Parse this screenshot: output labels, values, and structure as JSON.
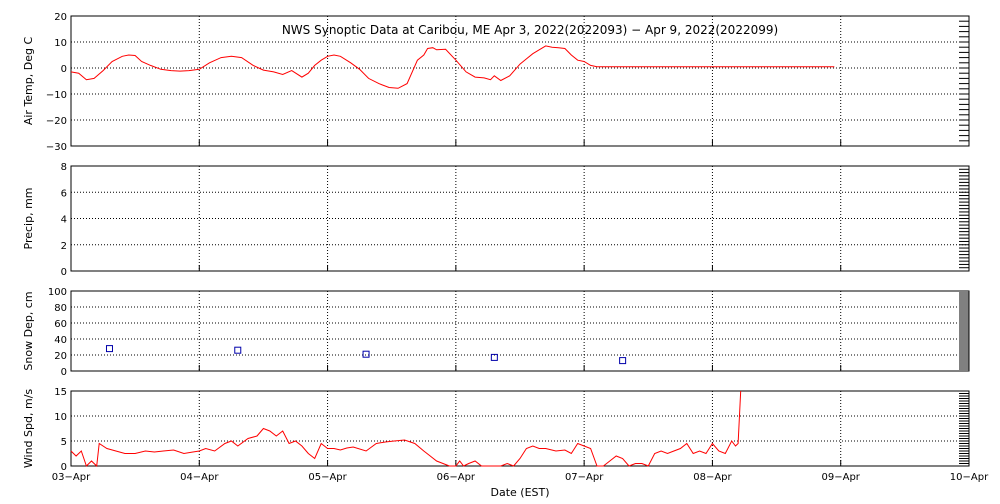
{
  "title": "NWS Synoptic Data at Caribou, ME   Apr  3, 2022(2022093) − Apr  9, 2022(2022099)",
  "colors": {
    "line": "#ff0000",
    "marker": "#0000aa",
    "axis": "#000000",
    "grid": "#000000"
  },
  "chart_data": [
    {
      "type": "line",
      "panel": "air-temp",
      "title": "NWS Synoptic Data at Caribou, ME   Apr  3, 2022(2022093) − Apr  9, 2022(2022099)",
      "ylabel": "Air Temp, Deg C",
      "xlabel": "",
      "ylim": [
        -30,
        20
      ],
      "yticks": [
        "−30",
        "−20",
        "−10",
        "0",
        "10",
        "20"
      ],
      "ytick_values": [
        -30,
        -20,
        -10,
        0,
        10,
        20
      ],
      "grid": true,
      "series": [
        {
          "x": [
            0,
            0.06,
            0.12,
            0.18,
            0.25,
            0.32,
            0.4,
            0.45,
            0.5,
            0.55,
            0.62,
            0.7,
            0.78,
            0.85,
            0.92,
            1.0,
            1.08,
            1.17,
            1.25,
            1.33,
            1.42,
            1.5,
            1.58,
            1.65,
            1.72,
            1.8,
            1.85,
            1.9,
            1.95,
            2.0,
            2.05,
            2.1,
            2.18,
            2.25,
            2.32,
            2.4,
            2.48,
            2.55,
            2.62,
            2.7,
            2.75,
            2.78,
            2.82,
            2.85,
            2.92,
            3.0,
            3.08,
            3.15,
            3.22,
            3.27,
            3.3,
            3.35,
            3.42,
            3.5,
            3.55,
            3.6,
            3.65,
            3.7,
            3.75,
            3.8,
            3.85,
            3.9,
            3.95,
            4.0,
            4.05,
            4.1,
            4.15,
            4.2,
            4.25,
            4.3,
            4.37,
            4.45,
            4.52,
            4.58,
            4.65,
            4.72,
            4.8,
            4.88,
            4.95,
            5.0,
            5.05,
            5.1,
            5.2,
            5.3,
            5.4,
            5.5,
            5.6,
            5.7,
            5.8,
            5.9,
            5.95
          ],
          "y": [
            -1.5,
            -2,
            -4.5,
            -4,
            -1,
            2.5,
            4.5,
            5,
            4.8,
            2.5,
            1,
            -0.5,
            -1,
            -1.2,
            -1,
            -0.5,
            2,
            4,
            4.5,
            4,
            1,
            -0.8,
            -1.5,
            -2.5,
            -1,
            -3.5,
            -2,
            1,
            3,
            4.5,
            5,
            4.5,
            2,
            -0.5,
            -4,
            -6,
            -7.5,
            -7.8,
            -6,
            3,
            5,
            7.5,
            7.8,
            7,
            7.2,
            3,
            -1.5,
            -3.5,
            -3.8,
            -4.5,
            -3,
            -4.8,
            -3,
            1.5,
            3.5,
            5.5,
            7,
            8.5,
            8,
            7.8,
            7.5,
            5,
            3,
            2.5,
            1,
            0.5,
            0.5,
            0.5,
            0.5,
            0.5,
            0.5,
            0.5,
            0.5,
            0.5,
            0.5,
            0.5,
            0.5,
            0.5,
            0.5,
            0.5,
            0.5,
            0.5,
            0.5,
            0.5,
            0.5,
            0.5,
            0.5,
            0.5,
            0.5,
            0.5,
            0.5
          ]
        }
      ]
    },
    {
      "type": "line",
      "panel": "precip",
      "ylabel": "Precip, mm",
      "xlabel": "",
      "ylim": [
        0,
        8
      ],
      "yticks": [
        "0",
        "2",
        "4",
        "6",
        "8"
      ],
      "ytick_values": [
        0,
        2,
        4,
        6,
        8
      ],
      "grid": true,
      "series": []
    },
    {
      "type": "scatter",
      "panel": "snow-depth",
      "ylabel": "Snow Dep, cm",
      "xlabel": "",
      "ylim": [
        0,
        100
      ],
      "yticks": [
        "0",
        "20",
        "40",
        "60",
        "80",
        "100"
      ],
      "ytick_values": [
        0,
        20,
        40,
        60,
        80,
        100
      ],
      "grid": true,
      "series": [
        {
          "x": [
            0.3,
            1.3,
            2.3,
            3.3,
            4.3
          ],
          "y": [
            28,
            26,
            21,
            17,
            13
          ]
        }
      ]
    },
    {
      "type": "line",
      "panel": "wind-speed",
      "ylabel": "Wind Spd, m/s",
      "xlabel": "Date (EST)",
      "ylim": [
        0,
        15
      ],
      "yticks": [
        "0",
        "5",
        "10",
        "15"
      ],
      "ytick_values": [
        0,
        5,
        10,
        15
      ],
      "grid": true,
      "xticks": [
        "03−Apr",
        "04−Apr",
        "05−Apr",
        "06−Apr",
        "07−Apr",
        "08−Apr",
        "09−Apr",
        "10−Apr"
      ],
      "series": [
        {
          "x": [
            0,
            0.04,
            0.08,
            0.12,
            0.16,
            0.2,
            0.22,
            0.28,
            0.35,
            0.42,
            0.5,
            0.58,
            0.65,
            0.72,
            0.8,
            0.88,
            0.95,
            1.0,
            1.05,
            1.12,
            1.2,
            1.25,
            1.3,
            1.38,
            1.45,
            1.5,
            1.55,
            1.6,
            1.65,
            1.7,
            1.75,
            1.8,
            1.85,
            1.9,
            1.95,
            2.0,
            2.05,
            2.1,
            2.15,
            2.2,
            2.3,
            2.38,
            2.45,
            2.52,
            2.6,
            2.68,
            2.75,
            2.8,
            2.85,
            2.9,
            2.95,
            3.0,
            3.03,
            3.06,
            3.1,
            3.15,
            3.2,
            3.25,
            3.3,
            3.35,
            3.4,
            3.45,
            3.5,
            3.55,
            3.6,
            3.65,
            3.7,
            3.78,
            3.85,
            3.9,
            3.95,
            4.0,
            4.05,
            4.1,
            4.15,
            4.2,
            4.25,
            4.3,
            4.35,
            4.4,
            4.45,
            4.5,
            4.55,
            4.6,
            4.65,
            4.7,
            4.75,
            4.8,
            4.85,
            4.9,
            4.95,
            5.0,
            5.05,
            5.1,
            5.15,
            5.18,
            5.2,
            5.22
          ],
          "y": [
            3,
            2,
            3,
            0,
            1,
            0,
            4.5,
            3.5,
            3,
            2.5,
            2.5,
            3,
            2.8,
            3,
            3.2,
            2.5,
            2.8,
            3,
            3.5,
            3,
            4.5,
            5,
            4,
            5.5,
            6,
            7.5,
            7,
            6,
            7,
            4.5,
            5,
            4,
            2.5,
            1.5,
            4.5,
            3.5,
            3.5,
            3.2,
            3.6,
            3.8,
            3,
            4.5,
            4.8,
            5,
            5.2,
            4.5,
            3,
            2,
            1,
            0.5,
            0,
            0,
            1,
            0,
            0.5,
            1,
            0,
            0,
            0,
            0,
            0.5,
            0,
            1.5,
            3.5,
            4,
            3.5,
            3.5,
            3,
            3.2,
            2.5,
            4.5,
            4,
            3.5,
            0,
            0,
            1,
            2,
            1.5,
            0,
            0.5,
            0.5,
            0,
            2.5,
            3,
            2.5,
            3,
            3.5,
            4.5,
            2.5,
            3,
            2.5,
            4.5,
            3,
            2.5,
            5,
            4,
            4.5,
            15
          ]
        }
      ]
    }
  ]
}
